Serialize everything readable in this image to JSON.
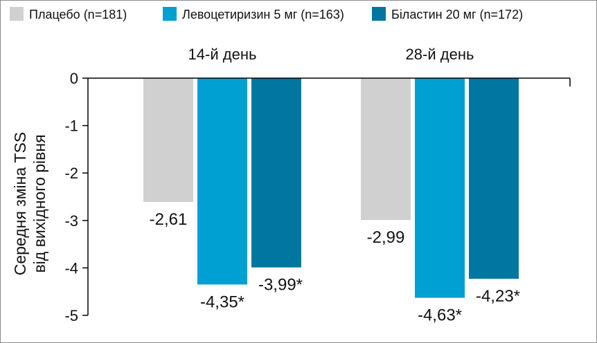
{
  "chart_data": {
    "type": "bar",
    "title": "",
    "xlabel": "",
    "ylabel_lines": [
      "Середня зміна TSS",
      "від вихідного рівня"
    ],
    "ylim": [
      -5,
      0
    ],
    "yticks": [
      "0",
      "-1",
      "-2",
      "-3",
      "-4",
      "-5"
    ],
    "categories": [
      "14-й день",
      "28-й день"
    ],
    "legend_position": "top",
    "series": [
      {
        "name": "Плацебо (n=181)",
        "color": "#d0d0d0",
        "values": [
          -2.61,
          -2.99
        ],
        "labels": [
          "-2,61",
          "-2,99"
        ]
      },
      {
        "name": "Левоцетиризин 5 мг (n=163)",
        "color": "#00a0d2",
        "values": [
          -4.35,
          -4.63
        ],
        "labels": [
          "-4,35*",
          "-4,63*"
        ]
      },
      {
        "name": "Біластин 20 мг (n=172)",
        "color": "#0076a0",
        "values": [
          -3.99,
          -4.23
        ],
        "labels": [
          "-3,99*",
          "-4,23*"
        ]
      }
    ]
  }
}
